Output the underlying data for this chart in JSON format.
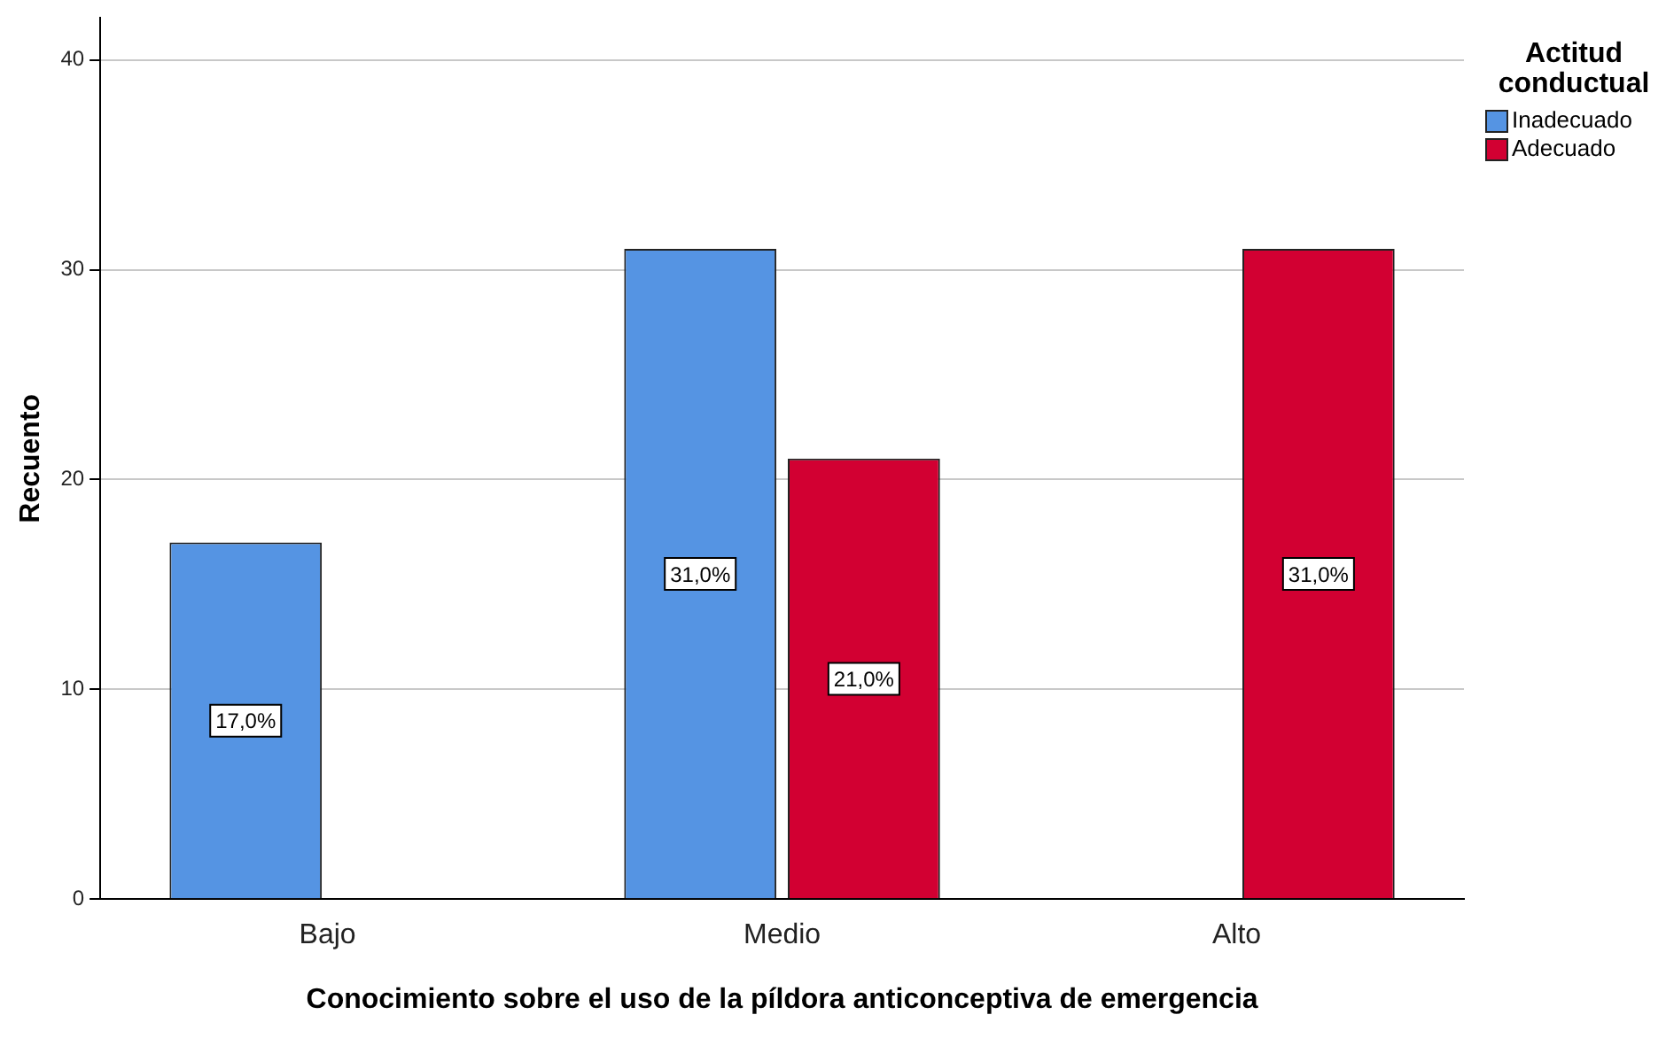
{
  "chart_data": {
    "type": "bar",
    "xlabel": "Conocimiento sobre el uso de la píldora anticonceptiva de emergencia",
    "ylabel": "Recuento",
    "legend_title": "Actitud conductual",
    "categories": [
      "Bajo",
      "Medio",
      "Alto"
    ],
    "series": [
      {
        "name": "Inadecuado",
        "color": "#5594e3",
        "values": [
          17,
          31,
          null
        ],
        "value_labels": [
          "17,0%",
          "31,0%",
          null
        ]
      },
      {
        "name": "Adecuado",
        "color": "#d20032",
        "values": [
          null,
          21,
          31
        ],
        "value_labels": [
          null,
          "21,0%",
          "31,0%"
        ]
      }
    ],
    "ylim": [
      0,
      42
    ],
    "yticks": [
      0,
      10,
      20,
      30,
      40
    ],
    "grid": "y",
    "legend": "top right"
  }
}
